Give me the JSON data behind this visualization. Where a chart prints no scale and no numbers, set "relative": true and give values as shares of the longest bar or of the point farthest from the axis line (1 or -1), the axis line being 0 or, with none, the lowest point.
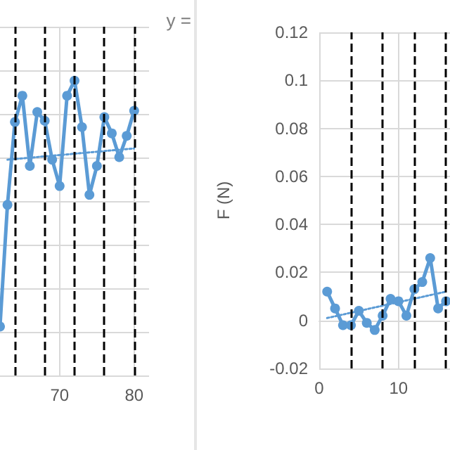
{
  "chart_data": [
    {
      "type": "line",
      "relative": true,
      "x": [
        62,
        63,
        64,
        65,
        66,
        67,
        68,
        69,
        70,
        71,
        72,
        73,
        74,
        75,
        76,
        77,
        78,
        79,
        80
      ],
      "xlim": [
        62,
        82
      ],
      "xticks": [
        70,
        80
      ],
      "series": [
        {
          "color": "#5b9bd5",
          "values": [
            -1,
            -0.03,
            0.63,
            0.84,
            0.28,
            0.71,
            0.64,
            0.33,
            0.12,
            0.84,
            0.96,
            0.59,
            0.05,
            0.28,
            0.67,
            0.54,
            0.35,
            0.52,
            0.72
          ]
        },
        {
          "type": "line",
          "color": "#5b9bd5",
          "x": [
            63,
            80
          ],
          "values": [
            0.33,
            0.42
          ],
          "marker": "none",
          "line_style": "dotted"
        }
      ],
      "ref_lines": [
        {
          "axis": "x",
          "value": 64,
          "color": "#000000",
          "line_style": "dashed"
        },
        {
          "axis": "x",
          "value": 68,
          "color": "#000000",
          "line_style": "dashed"
        },
        {
          "axis": "x",
          "value": 72,
          "color": "#000000",
          "line_style": "dashed"
        },
        {
          "axis": "x",
          "value": 76,
          "color": "#000000",
          "line_style": "dashed"
        },
        {
          "axis": "x",
          "value": 80,
          "color": "#000000",
          "line_style": "dashed"
        }
      ],
      "annotations": [
        "y ="
      ],
      "grid": true,
      "marker": "circle",
      "line_style": "solid"
    },
    {
      "type": "line",
      "ylabel": "F (N)",
      "x": [
        1,
        2,
        3,
        4,
        5,
        6,
        7,
        8,
        9,
        10,
        11,
        12,
        13,
        14,
        15,
        16
      ],
      "xlim": [
        0,
        16.5
      ],
      "xticks": [
        0,
        10
      ],
      "ylim": [
        -0.02,
        0.12
      ],
      "yticks": [
        -0.02,
        0,
        0.02,
        0.04,
        0.06,
        0.08,
        0.1,
        0.12
      ],
      "series": [
        {
          "color": "#5b9bd5",
          "values": [
            0.012,
            0.005,
            -0.002,
            -0.002,
            0.004,
            -0.001,
            -0.004,
            0.002,
            0.009,
            0.008,
            0.002,
            0.013,
            0.016,
            0.026,
            0.005,
            0.008
          ]
        },
        {
          "type": "line",
          "color": "#5b9bd5",
          "x": [
            1,
            16
          ],
          "values": [
            0.001,
            0.012
          ],
          "marker": "none",
          "line_style": "dotted"
        }
      ],
      "ref_lines": [
        {
          "axis": "x",
          "value": 4,
          "color": "#000000",
          "line_style": "dashed"
        },
        {
          "axis": "x",
          "value": 8,
          "color": "#000000",
          "line_style": "dashed"
        },
        {
          "axis": "x",
          "value": 12,
          "color": "#000000",
          "line_style": "dashed"
        },
        {
          "axis": "x",
          "value": 16,
          "color": "#000000",
          "line_style": "dashed"
        }
      ],
      "grid": true,
      "marker": "circle",
      "line_style": "solid"
    }
  ]
}
